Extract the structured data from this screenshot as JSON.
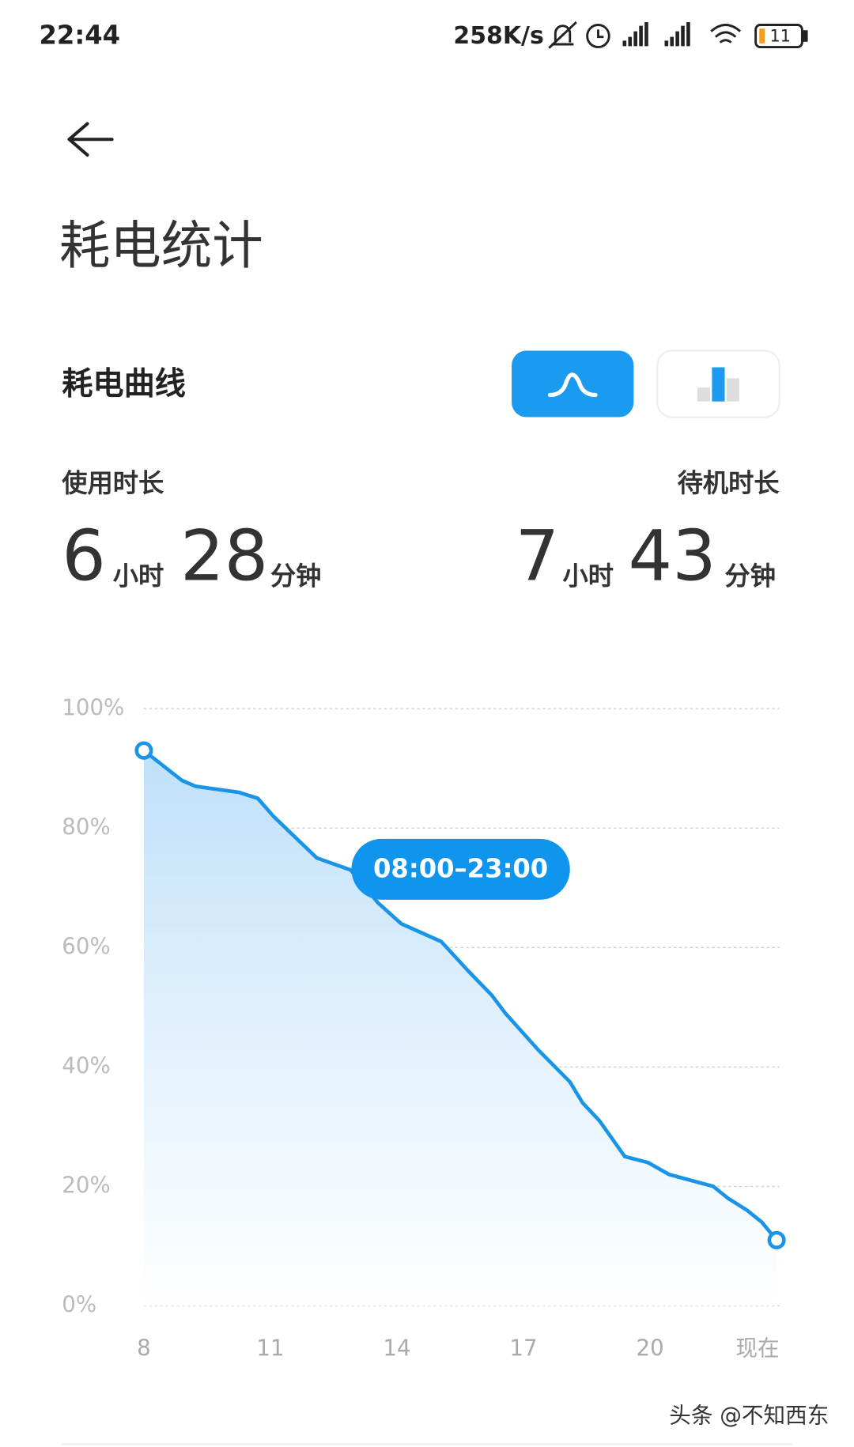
{
  "status_bar": {
    "time": "22:44",
    "speed": "258K/s",
    "battery": "11"
  },
  "header": {
    "title": "耗电统计"
  },
  "section": {
    "title": "耗电曲线"
  },
  "usage": {
    "label": "使用时长",
    "hours": 6,
    "hours_unit": "小时",
    "minutes": 28,
    "minutes_unit": "分钟"
  },
  "standby": {
    "label": "待机时长",
    "hours": 7,
    "hours_unit": "小时",
    "minutes": 43,
    "minutes_unit": "分钟"
  },
  "chart_data": {
    "type": "line",
    "x": [
      8,
      8.9,
      9.23,
      10.25,
      10.7,
      11.07,
      12.1,
      12.9,
      13.55,
      14.1,
      15.05,
      15.7,
      16.25,
      16.57,
      17.33,
      18.1,
      18.4,
      18.8,
      19.4,
      19.95,
      20.45,
      21.5,
      21.85,
      22.3,
      22.65,
      23
    ],
    "series": [
      {
        "color": "#1a94e6",
        "values": [
          93,
          88,
          87,
          86,
          85,
          82,
          75,
          73,
          67.5,
          64,
          61,
          56,
          52,
          49,
          43,
          37.5,
          34,
          31,
          25,
          24,
          22,
          20,
          18,
          16,
          14,
          11
        ]
      }
    ],
    "xlim": [
      8,
      23
    ],
    "ylim": [
      0,
      100
    ],
    "xticks": [
      8,
      11,
      14,
      17,
      20,
      {
        "value": 23,
        "label": "现在"
      }
    ],
    "yticks": [
      {
        "value": 0,
        "label": "0%"
      },
      {
        "value": 20,
        "label": "20%"
      },
      {
        "value": 40,
        "label": "40%"
      },
      {
        "value": 60,
        "label": "60%"
      },
      {
        "value": 80,
        "label": "80%"
      },
      {
        "value": 100,
        "label": "100%"
      }
    ],
    "grid": true,
    "annotation": "08:00–23:00"
  },
  "watermark": "头条 @不知西东"
}
